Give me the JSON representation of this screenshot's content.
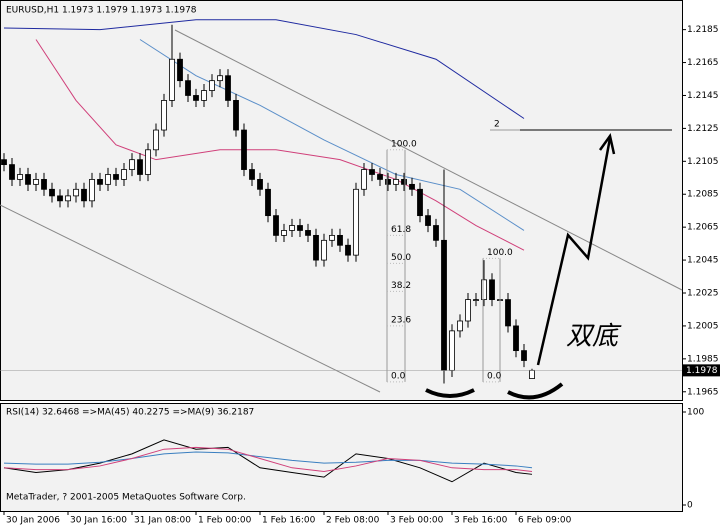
{
  "chart_data": {
    "type": "candlestick",
    "title": "EURUSD,H1  1.1973 1.1979 1.1973 1.1978",
    "categories": [
      "30 Jan 2006",
      null,
      null,
      null,
      null,
      null,
      null,
      null,
      "30 Jan 16:00",
      null,
      null,
      null,
      null,
      null,
      null,
      null,
      "31 Jan 08:00",
      null,
      null,
      null,
      null,
      null,
      null,
      null,
      "1 Feb 00:00",
      null,
      null,
      null,
      null,
      null,
      null,
      null,
      "1 Feb 16:00",
      null,
      null,
      null,
      null,
      null,
      null,
      null,
      "2 Feb 08:00",
      null,
      null,
      null,
      null,
      null,
      null,
      null,
      "3 Feb 00:00",
      null,
      null,
      null,
      null,
      null,
      null,
      null,
      "3 Feb 16:00",
      null,
      null,
      null,
      null,
      null,
      null,
      null,
      "6 Feb 09:00",
      null,
      null
    ],
    "open": [
      1.2106,
      1.2103,
      1.2094,
      1.2097,
      1.2091,
      1.2094,
      1.2088,
      1.2084,
      1.2081,
      1.2084,
      1.2088,
      1.2081,
      1.2094,
      1.2091,
      1.2097,
      1.2094,
      1.21,
      1.2106,
      1.2097,
      1.2112,
      1.2124,
      1.2142,
      1.2167,
      1.2154,
      1.2145,
      1.2142,
      1.2148,
      1.2154,
      1.2157,
      1.2142,
      1.2124,
      1.21,
      1.2094,
      1.2088,
      1.2072,
      1.206,
      1.2063,
      1.2066,
      1.2063,
      1.206,
      1.2045,
      1.2057,
      1.206,
      1.2054,
      1.2048,
      1.2088,
      1.21,
      1.2097,
      1.2094,
      1.2091,
      1.2094,
      1.2091,
      1.2088,
      1.2072,
      1.2066,
      1.2057,
      1.1978,
      1.2002,
      1.2008,
      1.2021,
      1.2021,
      1.2033,
      1.2021,
      1.2021,
      1.2005,
      1.199,
      1.1973
    ],
    "high": [
      1.211,
      1.2107,
      1.2101,
      1.2101,
      1.2098,
      1.2098,
      1.2092,
      1.2088,
      1.2088,
      1.2092,
      1.2092,
      1.2098,
      1.2098,
      1.2101,
      1.2101,
      1.2104,
      1.211,
      1.211,
      1.2116,
      1.2128,
      1.2146,
      1.2188,
      1.2171,
      1.2158,
      1.2149,
      1.2152,
      1.2158,
      1.2161,
      1.2161,
      1.2146,
      1.2128,
      1.2104,
      1.2098,
      1.2092,
      1.2076,
      1.2067,
      1.207,
      1.207,
      1.2067,
      1.2064,
      1.2061,
      1.2064,
      1.2064,
      1.2058,
      1.2092,
      1.2104,
      1.2104,
      1.2101,
      1.2098,
      1.2098,
      1.2098,
      1.2095,
      1.2092,
      1.2076,
      1.207,
      1.21,
      1.2006,
      1.2012,
      1.2025,
      1.2025,
      1.2045,
      1.2037,
      1.2025,
      1.2025,
      1.2009,
      1.1994,
      1.1979
    ],
    "low": [
      1.2099,
      1.209,
      1.209,
      1.2087,
      1.2087,
      1.2084,
      1.208,
      1.2077,
      1.2077,
      1.208,
      1.2077,
      1.2077,
      1.2087,
      1.2087,
      1.209,
      1.209,
      1.2096,
      1.2093,
      1.2093,
      1.2108,
      1.212,
      1.2138,
      1.215,
      1.2141,
      1.2138,
      1.2138,
      1.2144,
      1.215,
      1.2138,
      1.212,
      1.2096,
      1.209,
      1.2084,
      1.2068,
      1.2056,
      1.2056,
      1.2059,
      1.2059,
      1.2056,
      1.2041,
      1.2041,
      1.2053,
      1.205,
      1.2044,
      1.2044,
      1.2084,
      1.2093,
      1.209,
      1.2087,
      1.2087,
      1.2087,
      1.2084,
      1.2068,
      1.2062,
      1.2053,
      1.197,
      1.1974,
      1.1998,
      1.2004,
      1.2017,
      1.2017,
      1.2017,
      1.2017,
      1.2001,
      1.1986,
      1.198,
      1.1973
    ],
    "close": [
      1.2103,
      1.2094,
      1.2097,
      1.2091,
      1.2094,
      1.2088,
      1.2084,
      1.2081,
      1.2084,
      1.2088,
      1.2081,
      1.2094,
      1.2091,
      1.2097,
      1.2094,
      1.21,
      1.2106,
      1.2097,
      1.2112,
      1.2124,
      1.2142,
      1.2167,
      1.2154,
      1.2145,
      1.2142,
      1.2148,
      1.2154,
      1.2157,
      1.2142,
      1.2124,
      1.21,
      1.2094,
      1.2088,
      1.2072,
      1.206,
      1.2063,
      1.2066,
      1.2063,
      1.206,
      1.2045,
      1.2057,
      1.206,
      1.2054,
      1.2048,
      1.2088,
      1.21,
      1.2097,
      1.2094,
      1.2091,
      1.2094,
      1.2091,
      1.2088,
      1.2072,
      1.2066,
      1.2057,
      1.1978,
      1.2002,
      1.2008,
      1.2021,
      1.2021,
      1.2033,
      1.2021,
      1.2021,
      1.2005,
      1.199,
      1.1984,
      1.1978
    ],
    "ylim": [
      1.196,
      1.2203
    ],
    "yticks": [
      1.2185,
      1.2165,
      1.2145,
      1.2125,
      1.2105,
      1.2085,
      1.2065,
      1.2045,
      1.2025,
      1.2005,
      1.1985,
      1.1965
    ],
    "last_price": 1.1978,
    "overlays": [
      {
        "color": "#1f2aa0",
        "x": [
          0,
          12,
          24,
          34,
          44,
          54,
          65
        ],
        "values": [
          1.2186,
          1.2185,
          1.2191,
          1.2191,
          1.2182,
          1.2167,
          1.2131
        ]
      },
      {
        "color": "#5b8fc9",
        "x": [
          17,
          24,
          32,
          40,
          49,
          57,
          65
        ],
        "values": [
          1.2179,
          1.2157,
          1.2139,
          1.2118,
          1.2097,
          1.2088,
          1.2063
        ]
      },
      {
        "color": "#d0407a",
        "x": [
          4,
          9,
          14,
          19,
          27,
          34,
          42,
          49,
          54,
          59,
          65
        ],
        "values": [
          1.2179,
          1.2142,
          1.2115,
          1.2106,
          1.2112,
          1.2112,
          1.2106,
          1.2094,
          1.2081,
          1.2066,
          1.2051
        ]
      }
    ],
    "fibo": [
      {
        "value": 1.2112,
        "label": "100.0"
      },
      {
        "value": 1.206,
        "label": "61.8"
      },
      {
        "value": 1.2043,
        "label": "50.0"
      },
      {
        "value": 1.2026,
        "label": "38.2"
      },
      {
        "value": 1.2005,
        "label": "23.6"
      },
      {
        "value": 1.1971,
        "label": "0.0"
      }
    ],
    "fibo2": [
      {
        "value": 1.2046,
        "label": "100.0"
      },
      {
        "value": 1.1971,
        "label": "0.0"
      }
    ],
    "target": {
      "value": 1.2124,
      "label": "2"
    },
    "annotation": "双底",
    "rsi": {
      "title": "RSI(14) 32.6468  =>MA(45) 40.2275  =>MA(9) 36.2187",
      "ylim": [
        0,
        100
      ],
      "yticks": [
        0,
        100
      ],
      "series": [
        {
          "color": "#000000",
          "x": [
            0,
            4,
            8,
            12,
            16,
            20,
            24,
            28,
            32,
            36,
            40,
            44,
            48,
            52,
            56,
            60,
            64,
            66
          ],
          "values": [
            40,
            35,
            38,
            45,
            55,
            70,
            60,
            62,
            40,
            35,
            30,
            55,
            50,
            40,
            25,
            45,
            35,
            33
          ]
        },
        {
          "color": "#3a7fc0",
          "x": [
            0,
            4,
            8,
            12,
            16,
            20,
            24,
            28,
            32,
            36,
            40,
            44,
            48,
            52,
            56,
            60,
            64,
            66
          ],
          "values": [
            45,
            44,
            44,
            46,
            50,
            55,
            57,
            56,
            52,
            48,
            45,
            46,
            48,
            48,
            45,
            44,
            42,
            40
          ]
        },
        {
          "color": "#d0407a",
          "x": [
            0,
            4,
            8,
            12,
            16,
            20,
            24,
            28,
            32,
            36,
            40,
            44,
            48,
            52,
            56,
            60,
            64,
            66
          ],
          "values": [
            40,
            38,
            38,
            42,
            50,
            60,
            62,
            60,
            50,
            40,
            36,
            42,
            50,
            48,
            40,
            38,
            38,
            36
          ]
        }
      ]
    },
    "footer": "MetaTrader, ? 2001-2005 MetaQuotes Software Corp."
  }
}
